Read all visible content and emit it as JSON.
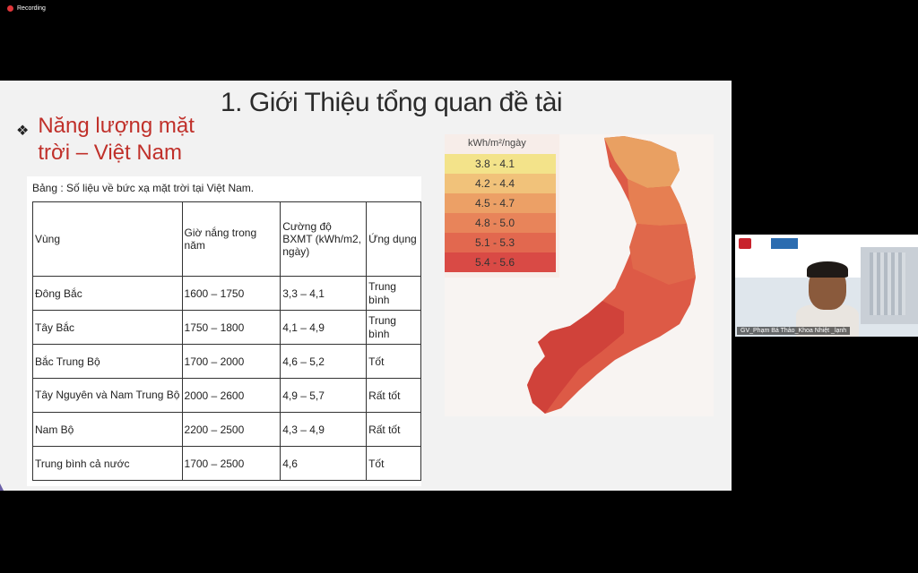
{
  "recording": {
    "label": "Recording"
  },
  "slide": {
    "title": "1. Giới Thiệu tổng quan đề tài",
    "bullet_line1": "Năng lượng mặt",
    "bullet_line2": "trời – Việt Nam"
  },
  "table": {
    "caption": "Bảng : Số liệu về bức xạ mặt trời tại Việt Nam.",
    "headers": [
      "Vùng",
      "Giờ nắng trong năm",
      "Cường độ BXMT (kWh/m2, ngày)",
      "Ứng dụng"
    ],
    "rows": [
      [
        "Đông Bắc",
        "1600 – 1750",
        "3,3 – 4,1",
        "Trung bình"
      ],
      [
        "Tây Bắc",
        "1750 – 1800",
        "4,1 – 4,9",
        "Trung bình"
      ],
      [
        "Bắc Trung Bộ",
        "1700 – 2000",
        "4,6 – 5,2",
        "Tốt"
      ],
      [
        "Tây Nguyên và Nam Trung Bộ",
        "2000 – 2600",
        "4,9 – 5,7",
        "Rất tốt"
      ],
      [
        "Nam Bộ",
        "2200 – 2500",
        "4,3 – 4,9",
        "Rất tốt"
      ],
      [
        "Trung bình cả nước",
        "1700 – 2500",
        "4,6",
        "Tốt"
      ]
    ]
  },
  "map_legend": {
    "title": "kWh/m²/ngày",
    "items": [
      {
        "label": "3.8 - 4.1",
        "color": "#f3e38a"
      },
      {
        "label": "4.2 - 4.4",
        "color": "#f1c27a"
      },
      {
        "label": "4.5 - 4.7",
        "color": "#eca066"
      },
      {
        "label": "4.8 - 5.0",
        "color": "#e8845a"
      },
      {
        "label": "5.1 - 5.3",
        "color": "#e2684f"
      },
      {
        "label": "5.4 - 5.6",
        "color": "#d94a45"
      }
    ]
  },
  "video": {
    "name": "GV_Phạm Bá Thảo_Khoa Nhiệt _lạnh"
  }
}
